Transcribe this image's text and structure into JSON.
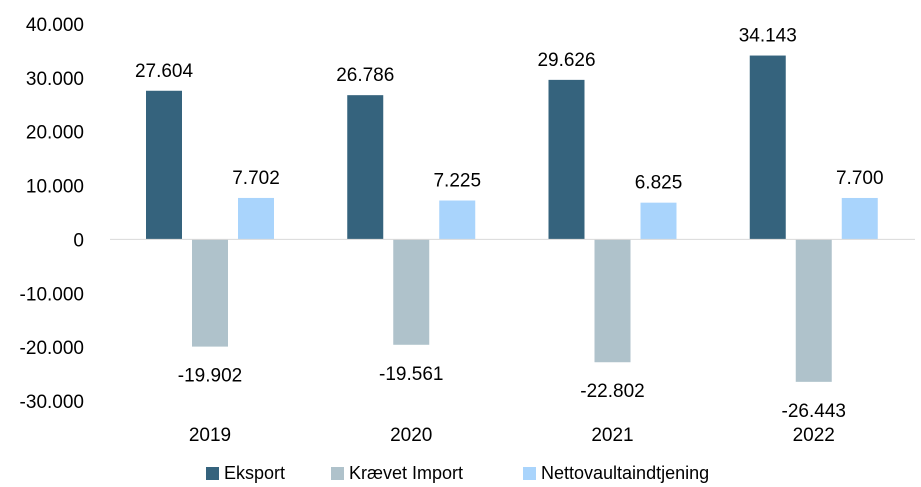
{
  "chart_data": {
    "type": "bar",
    "categories": [
      "2019",
      "2020",
      "2021",
      "2022"
    ],
    "series": [
      {
        "name": "Eksport",
        "values": [
          27604,
          26786,
          29626,
          34143
        ],
        "labels": [
          "27.604",
          "26.786",
          "29.626",
          "34.143"
        ],
        "color": "#35637d"
      },
      {
        "name": "Krævet Import",
        "values": [
          -19902,
          -19561,
          -22802,
          -26443
        ],
        "labels": [
          "-19.902",
          "-19.561",
          "-22.802",
          "-26.443"
        ],
        "color": "#afc2cb"
      },
      {
        "name": "Nettovaultaindtjening",
        "values": [
          7702,
          7225,
          6825,
          7700
        ],
        "labels": [
          "7.702",
          "7.225",
          "6.825",
          "7.700"
        ],
        "color": "#a9d4fc"
      }
    ],
    "ylim": [
      -30000,
      40000
    ],
    "yticks": [
      40000,
      30000,
      20000,
      10000,
      0,
      -10000,
      -20000,
      -30000
    ],
    "ytick_labels": [
      "40.000",
      "30.000",
      "20.000",
      "10.000",
      "0",
      "-10.000",
      "-20.000",
      "-30.000"
    ],
    "grid": false,
    "legend": "bottom"
  }
}
